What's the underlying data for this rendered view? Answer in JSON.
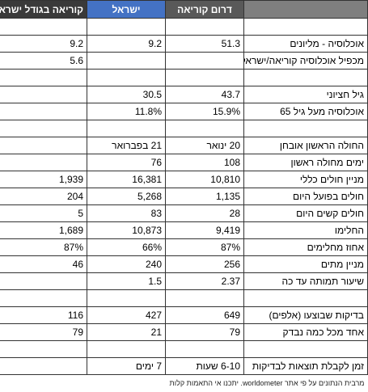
{
  "header": {
    "columns": [
      "דרום קוריאה",
      "ישראל",
      "קוריאה בגודל ישראל"
    ]
  },
  "sections": [
    [
      {
        "label": "אוכלוסיה - מליונים",
        "cells": [
          "51.3",
          "9.2",
          "9.2"
        ]
      },
      {
        "label": "מכפיל אוכלוסיה קוריאה/ישראל",
        "cells": [
          null,
          null,
          "5.6"
        ]
      }
    ],
    [
      {
        "label": "גיל חציוני",
        "cells": [
          "43.7",
          "30.5",
          null
        ]
      },
      {
        "label": "אוכלוסיה  מעל גיל 65",
        "cells": [
          "15.9%",
          "11.8%",
          null
        ]
      }
    ],
    [
      {
        "label": "החולה הראשון אובחן",
        "cells": [
          "20 ינואר",
          "21 בפברואר",
          null
        ]
      },
      {
        "label": "ימים מחולה ראשון",
        "cells": [
          "108",
          "76",
          null
        ]
      },
      {
        "label": "מניין חולים כללי",
        "cells": [
          "10,810",
          "16,381",
          "1,939"
        ]
      },
      {
        "label": "חולים בפועל היום",
        "cells": [
          "1,135",
          "5,268",
          "204"
        ]
      },
      {
        "label": "חולים קשים היום",
        "cells": [
          "28",
          "83",
          "5"
        ]
      },
      {
        "label": "החלימו",
        "cells": [
          "9,419",
          "10,873",
          "1,689"
        ]
      },
      {
        "label": "אחוז מחלימים",
        "cells": [
          "87%",
          "66%",
          "87%"
        ]
      },
      {
        "label": "מניין מתים",
        "cells": [
          "256",
          "240",
          "46"
        ]
      },
      {
        "label": "שיעור תמותה עד כה",
        "cells": [
          "2.37",
          "1.5",
          null
        ]
      }
    ],
    [
      {
        "label": "בדיקות שבוצעו (אלפים)",
        "cells": [
          "649",
          "427",
          "116"
        ]
      },
      {
        "label": "אחד מכל כמה נבדק",
        "cells": [
          "79",
          "21",
          "79"
        ]
      }
    ],
    [
      {
        "label": "זמן לקבלת תוצאות לבדיקות",
        "cells": [
          "6-10 שעות",
          "7 ימים",
          null
        ]
      }
    ]
  ],
  "footnote": "מרבית הנתונים על פי אתר worldometer. יתכנו אי התאמות קלות"
}
